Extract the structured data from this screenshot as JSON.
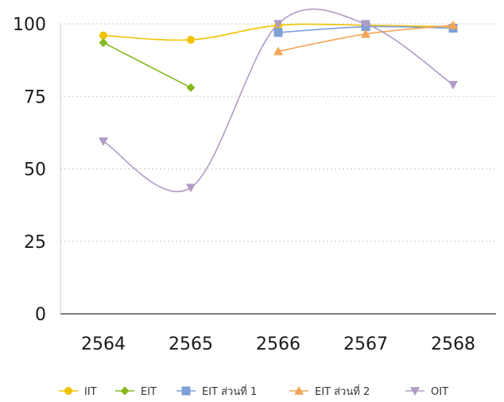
{
  "chart_data": {
    "type": "line",
    "categories": [
      "2564",
      "2565",
      "2566",
      "2567",
      "2568"
    ],
    "ylim": [
      0,
      100
    ],
    "yticks": [
      "0",
      "25",
      "50",
      "75",
      "100"
    ],
    "grid": "horizontal dotted",
    "legend_position": "bottom",
    "smooth": true,
    "series": [
      {
        "name": "IIT",
        "color": "#f2c200",
        "marker": "circle",
        "values": [
          96,
          94.5,
          99.5,
          99.5,
          99
        ]
      },
      {
        "name": "EIT",
        "color": "#86b820",
        "marker": "diamond",
        "values": [
          93.5,
          78,
          null,
          null,
          null
        ]
      },
      {
        "name": "EIT ส่วนที่ 1",
        "color": "#7f9fd6",
        "marker": "square",
        "values": [
          null,
          null,
          97,
          99,
          98.5
        ]
      },
      {
        "name": "EIT ส่วนที่ 2",
        "color": "#f4a556",
        "marker": "triangle-up",
        "values": [
          null,
          null,
          90.5,
          96.5,
          99.5
        ]
      },
      {
        "name": "OIT",
        "color": "#b29cc6",
        "marker": "triangle-down",
        "values": [
          59.5,
          43.5,
          100,
          100,
          79
        ]
      }
    ]
  }
}
